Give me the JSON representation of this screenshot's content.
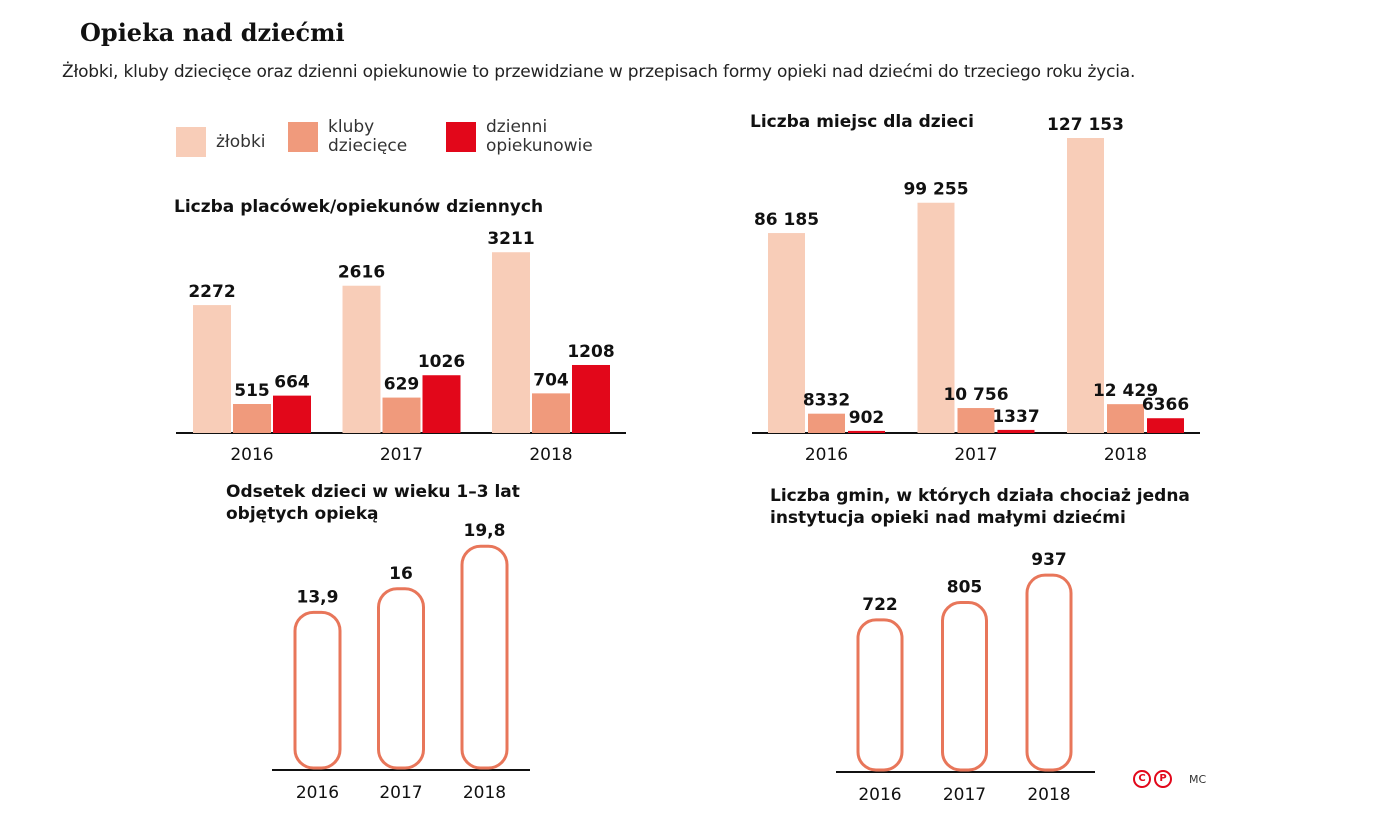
{
  "title": "Opieka nad dziećmi",
  "subtitle": "Żłobki, kluby dziecięce oraz dzienni opiekunowie to przewidziane w przepisach formy opieki nad dziećmi do trzeciego roku życia.",
  "legend": [
    {
      "label": "żłobki",
      "color": "#f8cdb8"
    },
    {
      "label": "kluby dziecięce",
      "line1": "kluby",
      "line2": "dziecięce",
      "color": "#f09a7c"
    },
    {
      "label": "dzienni opiekunowie",
      "line1": "dzienni",
      "line2": "opiekunowie",
      "color": "#e2071a"
    }
  ],
  "credit": "MC",
  "chart_data": [
    {
      "type": "bar",
      "title": "Liczba placówek/opiekunów dziennych",
      "categories": [
        "2016",
        "2017",
        "2018"
      ],
      "series": [
        {
          "name": "żłobki",
          "values": [
            2272,
            2616,
            3211
          ],
          "labels": [
            "2272",
            "2616",
            "3211"
          ]
        },
        {
          "name": "kluby dziecięce",
          "values": [
            515,
            629,
            704
          ],
          "labels": [
            "515",
            "629",
            "704"
          ]
        },
        {
          "name": "dzienni opiekunowie",
          "values": [
            664,
            1026,
            1208
          ],
          "labels": [
            "664",
            "1026",
            "1208"
          ]
        }
      ]
    },
    {
      "type": "bar",
      "title": "Liczba miejsc dla dzieci",
      "categories": [
        "2016",
        "2017",
        "2018"
      ],
      "series": [
        {
          "name": "żłobki",
          "values": [
            86185,
            99255,
            127153
          ],
          "labels": [
            "86 185",
            "99 255",
            "127 153"
          ]
        },
        {
          "name": "kluby dziecięce",
          "values": [
            8332,
            10756,
            12429
          ],
          "labels": [
            "8332",
            "10 756",
            "12 429"
          ]
        },
        {
          "name": "dzienni opiekunowie",
          "values": [
            902,
            1337,
            6366
          ],
          "labels": [
            "902",
            "1337",
            "6366"
          ]
        }
      ]
    },
    {
      "type": "bar",
      "title": "Odsetek dzieci w wieku 1–3 lat objętych opieką",
      "title_line1": "Odsetek dzieci w wieku 1–3 lat",
      "title_line2": "objętych opieką",
      "categories": [
        "2016",
        "2017",
        "2018"
      ],
      "values": [
        13.9,
        16,
        19.8
      ],
      "labels": [
        "13,9",
        "16",
        "19,8"
      ]
    },
    {
      "type": "bar",
      "title": "Liczba gmin, w których działa chociaż jedna instytucja opieki nad małymi dziećmi",
      "title_line1": "Liczba gmin, w których działa chociaż jedna",
      "title_line2": "instytucja opieki nad małymi dziećmi",
      "categories": [
        "2016",
        "2017",
        "2018"
      ],
      "values": [
        722,
        805,
        937
      ],
      "labels": [
        "722",
        "805",
        "937"
      ]
    }
  ]
}
